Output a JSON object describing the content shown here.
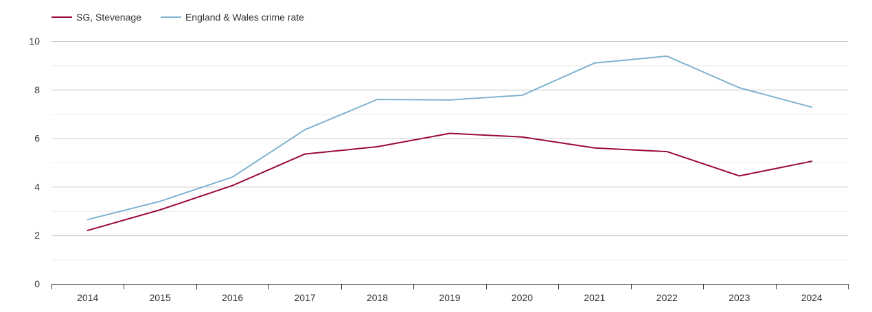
{
  "chart_data": {
    "type": "line",
    "title": "",
    "xlabel": "",
    "ylabel": "",
    "x": [
      "2014",
      "2015",
      "2016",
      "2017",
      "2018",
      "2019",
      "2020",
      "2021",
      "2022",
      "2023",
      "2024"
    ],
    "ylim": [
      0,
      10
    ],
    "yticks": [
      0,
      2,
      4,
      6,
      8,
      10
    ],
    "grid": true,
    "legend_position": "top-left",
    "series": [
      {
        "name": "SG, Stevenage",
        "color": "#9b0a32",
        "values": [
          2.2,
          3.05,
          4.05,
          5.35,
          5.65,
          6.2,
          6.05,
          5.6,
          5.45,
          4.45,
          5.05
        ]
      },
      {
        "name": "England & Wales crime rate",
        "color": "#7fb2d0",
        "values": [
          2.65,
          3.4,
          4.4,
          6.35,
          7.6,
          7.58,
          7.77,
          9.1,
          9.38,
          8.08,
          7.28
        ]
      }
    ]
  }
}
